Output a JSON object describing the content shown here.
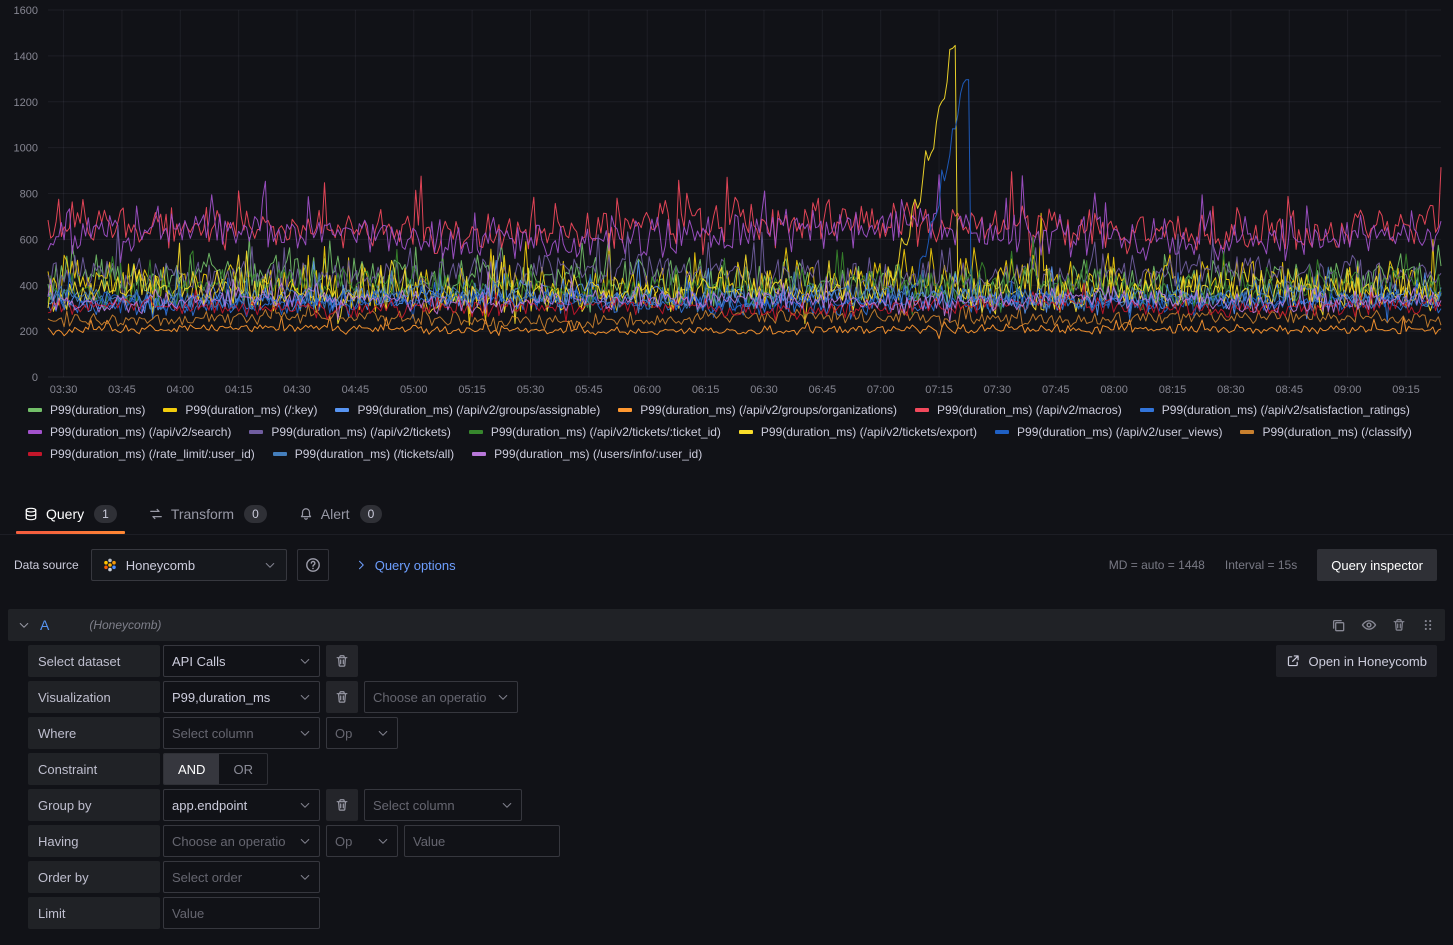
{
  "chart_data": {
    "type": "line",
    "title": "",
    "xlabel": "",
    "ylabel": "",
    "ylim": [
      0,
      1600
    ],
    "y_ticks": [
      0,
      200,
      400,
      600,
      800,
      1000,
      1200,
      1400,
      1600
    ],
    "x_range": [
      "03:26",
      "09:24"
    ],
    "x_ticks": [
      "03:30",
      "03:45",
      "04:00",
      "04:15",
      "04:30",
      "04:45",
      "05:00",
      "05:15",
      "05:30",
      "05:45",
      "06:00",
      "06:15",
      "06:30",
      "06:45",
      "07:00",
      "07:15",
      "07:30",
      "07:45",
      "08:00",
      "08:15",
      "08:30",
      "08:45",
      "09:00",
      "09:15"
    ],
    "grid": true,
    "legend_position": "bottom",
    "series": [
      {
        "name": "P99(duration_ms)",
        "color": "#73BF69",
        "approx_base": 430,
        "approx_amplitude": 115
      },
      {
        "name": "P99(duration_ms) (/:key)",
        "color": "#F2CC0C",
        "approx_base": 400,
        "approx_amplitude": 125
      },
      {
        "name": "P99(duration_ms) (/api/v2/groups/assignable)",
        "color": "#5794F2",
        "approx_base": 345,
        "approx_amplitude": 70
      },
      {
        "name": "P99(duration_ms) (/api/v2/groups/organizations)",
        "color": "#FF9830",
        "approx_base": 205,
        "approx_amplitude": 26
      },
      {
        "name": "P99(duration_ms) (/api/v2/macros)",
        "color": "#F2495C",
        "approx_base": 655,
        "approx_amplitude": 115
      },
      {
        "name": "P99(duration_ms) (/api/v2/satisfaction_ratings)",
        "color": "#3274D9",
        "approx_base": 325,
        "approx_amplitude": 55
      },
      {
        "name": "P99(duration_ms) (/api/v2/search)",
        "color": "#A352CC",
        "approx_base": 625,
        "approx_amplitude": 115
      },
      {
        "name": "P99(duration_ms) (/api/v2/tickets)",
        "color": "#705DA0",
        "approx_base": 445,
        "approx_amplitude": 95
      },
      {
        "name": "P99(duration_ms) (/api/v2/tickets/:ticket_id)",
        "color": "#37872D",
        "approx_base": 395,
        "approx_amplitude": 95
      },
      {
        "name": "P99(duration_ms) (/api/v2/tickets/export)",
        "color": "#FADE2A",
        "approx_base": 365,
        "approx_amplitude": 95,
        "spike": {
          "start_frac": 0.595,
          "peak_frac": 0.648,
          "end_frac": 0.652,
          "peak_value": 1425
        }
      },
      {
        "name": "P99(duration_ms) (/api/v2/user_views)",
        "color": "#1F60C4",
        "approx_base": 330,
        "approx_amplitude": 55,
        "spike": {
          "start_frac": 0.612,
          "peak_frac": 0.657,
          "end_frac": 0.661,
          "peak_value": 1310
        }
      },
      {
        "name": "P99(duration_ms) (/classify)",
        "color": "#C9802E",
        "approx_base": 255,
        "approx_amplitude": 40
      },
      {
        "name": "P99(duration_ms) (/rate_limit/:user_id)",
        "color": "#C4162A",
        "approx_base": 305,
        "approx_amplitude": 48
      },
      {
        "name": "P99(duration_ms) (/tickets/all)",
        "color": "#447EBC",
        "approx_base": 350,
        "approx_amplitude": 60
      },
      {
        "name": "P99(duration_ms) (/users/info/:user_id)",
        "color": "#B877D9",
        "approx_base": 335,
        "approx_amplitude": 60
      }
    ]
  },
  "tabs": [
    {
      "label": "Query",
      "count": "1"
    },
    {
      "label": "Transform",
      "count": "0"
    },
    {
      "label": "Alert",
      "count": "0"
    }
  ],
  "toolbar": {
    "datasource_label": "Data source",
    "datasource_value": "Honeycomb",
    "query_options_label": "Query options",
    "md_text": "MD = auto = 1448",
    "interval_text": "Interval = 15s",
    "query_inspector_label": "Query inspector"
  },
  "query": {
    "ref_id": "A",
    "datasource_hint": "(Honeycomb)",
    "open_in_honeycomb": "Open in Honeycomb",
    "rows": {
      "select_dataset": {
        "label": "Select dataset",
        "value": "API Calls"
      },
      "visualization": {
        "label": "Visualization",
        "value": "P99,duration_ms",
        "op_placeholder": "Choose an operatio"
      },
      "where": {
        "label": "Where",
        "col_placeholder": "Select column",
        "op_placeholder": "Op"
      },
      "constraint": {
        "label": "Constraint",
        "and": "AND",
        "or": "OR"
      },
      "group_by": {
        "label": "Group by",
        "value": "app.endpoint",
        "col_placeholder": "Select column"
      },
      "having": {
        "label": "Having",
        "op1_placeholder": "Choose an operatio",
        "op2_placeholder": "Op",
        "value_placeholder": "Value"
      },
      "order_by": {
        "label": "Order by",
        "placeholder": "Select order"
      },
      "limit": {
        "label": "Limit",
        "placeholder": "Value"
      }
    }
  },
  "colors": {
    "background": "#111217",
    "surface": "#202226",
    "text": "#CCCCDC",
    "accent_blue": "#5794F2",
    "link_blue": "#6E9FFF"
  }
}
